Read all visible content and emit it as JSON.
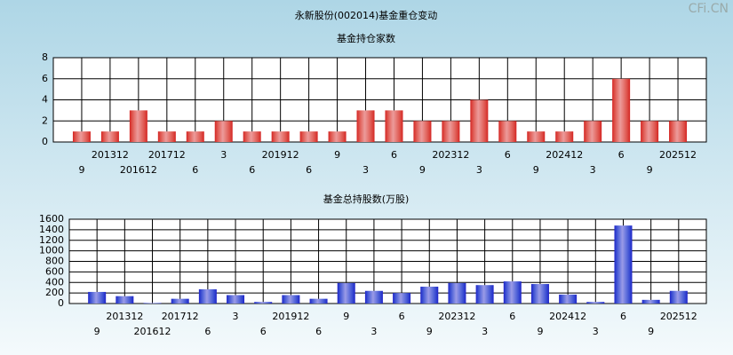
{
  "title": "永新股份(002014)基金重仓变动",
  "watermark": "CFi.CN",
  "chart_data": [
    {
      "type": "bar",
      "title": "基金持仓家数",
      "categories": [
        "9",
        "201312",
        "201612",
        "201712",
        "6",
        "3",
        "6",
        "201912",
        "6",
        "9",
        "3",
        "6",
        "9",
        "202312",
        "3",
        "6",
        "9",
        "202412",
        "3",
        "6",
        "9",
        "202512"
      ],
      "values": [
        1,
        1,
        3,
        1,
        1,
        2,
        1,
        1,
        1,
        1,
        3,
        3,
        2,
        2,
        4,
        2,
        1,
        1,
        2,
        6,
        2,
        2
      ],
      "color": "#d42020",
      "ylim": [
        0,
        8
      ],
      "yticks": [
        0,
        2,
        4,
        6,
        8
      ],
      "grid": true
    },
    {
      "type": "bar",
      "title": "基金总持股数(万股)",
      "categories": [
        "9",
        "201312",
        "201612",
        "201712",
        "6",
        "3",
        "6",
        "201912",
        "6",
        "9",
        "3",
        "6",
        "9",
        "202312",
        "3",
        "6",
        "9",
        "202412",
        "3",
        "6",
        "9",
        "202512"
      ],
      "values": [
        220,
        140,
        10,
        90,
        270,
        160,
        30,
        160,
        90,
        390,
        240,
        200,
        320,
        390,
        350,
        420,
        370,
        170,
        30,
        1480,
        70,
        240
      ],
      "color": "#2020c8",
      "ylim": [
        0,
        1600
      ],
      "yticks": [
        0,
        200,
        400,
        600,
        800,
        1000,
        1200,
        1400,
        1600
      ],
      "grid": true
    }
  ]
}
